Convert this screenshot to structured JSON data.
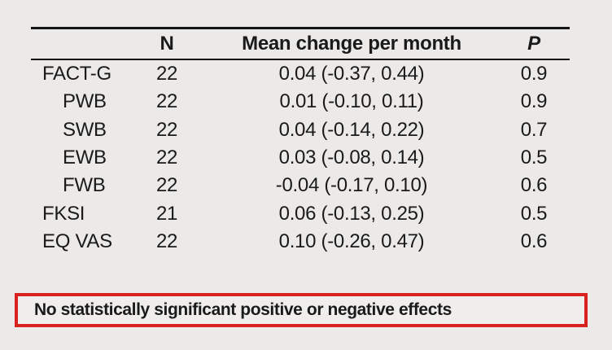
{
  "chart_data": {
    "type": "table",
    "columns": [
      "",
      "N",
      "Mean change per month",
      "P"
    ],
    "rows": [
      {
        "label": "FACT-G",
        "n": "22",
        "mean_change_per_month": "0.04 (-0.37, 0.44)",
        "p": "0.9"
      },
      {
        "label": "PWB",
        "n": "22",
        "mean_change_per_month": "0.01 (-0.10, 0.11)",
        "p": "0.9"
      },
      {
        "label": "SWB",
        "n": "22",
        "mean_change_per_month": "0.04 (-0.14, 0.22)",
        "p": "0.7"
      },
      {
        "label": "EWB",
        "n": "22",
        "mean_change_per_month": "0.03 (-0.08, 0.14)",
        "p": "0.5"
      },
      {
        "label": "FWB",
        "n": "22",
        "mean_change_per_month": "-0.04 (-0.17, 0.10)",
        "p": "0.6"
      },
      {
        "label": "FKSI",
        "n": "21",
        "mean_change_per_month": "0.06 (-0.13, 0.25)",
        "p": "0.5"
      },
      {
        "label": "EQ VAS",
        "n": "22",
        "mean_change_per_month": "0.10 (-0.26, 0.47)",
        "p": "0.6"
      }
    ]
  },
  "callout": {
    "text": "No statistically significant positive or negative effects"
  },
  "colors": {
    "background": "#eceae8",
    "text": "#1a1a1a",
    "rule": "#141414",
    "callout_border": "#d92220",
    "callout_background": "#efeeec"
  }
}
